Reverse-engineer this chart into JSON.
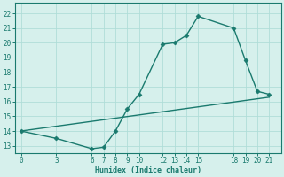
{
  "curve1_x": [
    0,
    3,
    6,
    7,
    8,
    9,
    10,
    12,
    13,
    14,
    15,
    18,
    19,
    20,
    21
  ],
  "curve1_y": [
    14.0,
    13.5,
    12.8,
    12.9,
    14.0,
    15.5,
    16.5,
    19.9,
    20.0,
    20.5,
    21.8,
    21.0,
    18.8,
    16.7,
    16.5
  ],
  "curve2_x": [
    0,
    21
  ],
  "curve2_y": [
    14.0,
    16.3
  ],
  "line_color": "#1a7a6e",
  "bg_color": "#d6f0ec",
  "grid_color": "#b0ddd8",
  "axis_color": "#1a7a6e",
  "xlabel": "Humidex (Indice chaleur)",
  "xlim": [
    -0.5,
    22
  ],
  "ylim": [
    12.5,
    22.7
  ],
  "xticks": [
    0,
    3,
    6,
    7,
    8,
    9,
    10,
    12,
    13,
    14,
    15,
    18,
    19,
    20,
    21
  ],
  "yticks": [
    13,
    14,
    15,
    16,
    17,
    18,
    19,
    20,
    21,
    22
  ],
  "marker_size": 2.5,
  "line_width": 1.0
}
